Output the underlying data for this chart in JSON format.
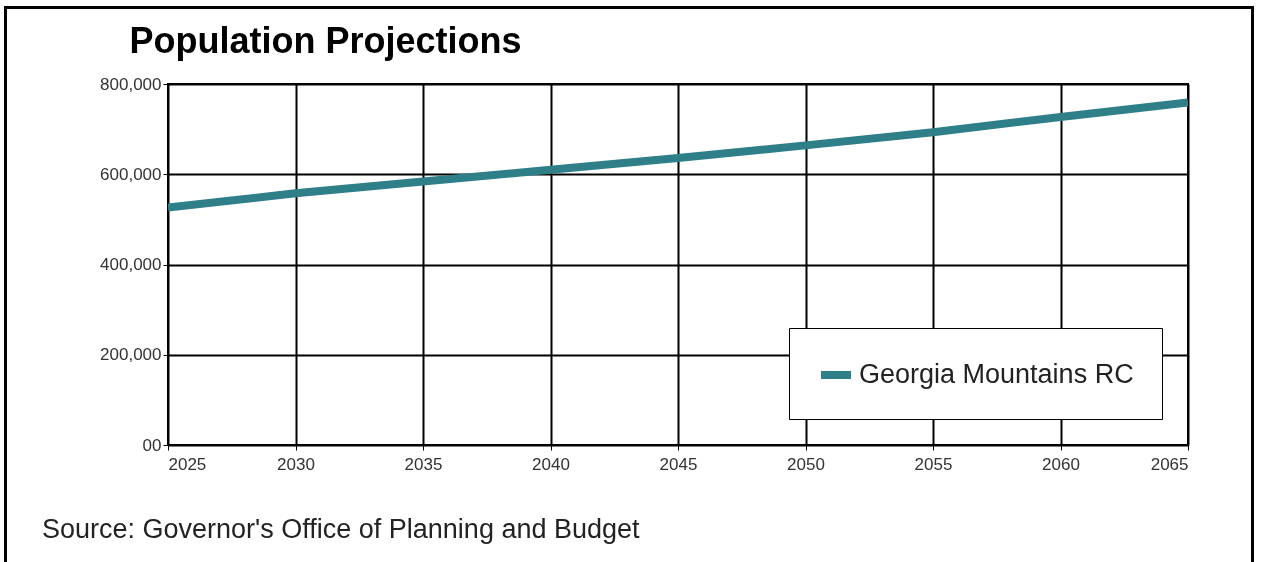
{
  "chart_data": {
    "type": "line",
    "title": "Population Projections",
    "x": [
      2025,
      2030,
      2035,
      2040,
      2045,
      2050,
      2055,
      2060,
      2065
    ],
    "series": [
      {
        "name": "Georgia Mountains RC",
        "color": "#2e7f88",
        "values": [
          526000,
          558000,
          584000,
          610000,
          636000,
          664000,
          693000,
          727000,
          759000
        ]
      }
    ],
    "xlim": [
      2025,
      2065
    ],
    "xticks": [
      2025,
      2030,
      2035,
      2040,
      2045,
      2050,
      2055,
      2060,
      2065
    ],
    "ylim": [
      0,
      800000
    ],
    "yticks": [
      {
        "value": 0,
        "label": "00"
      },
      {
        "value": 200000,
        "label": "200,000"
      },
      {
        "value": 400000,
        "label": "400,000"
      },
      {
        "value": 600000,
        "label": "600,000"
      },
      {
        "value": 800000,
        "label": "800,000"
      }
    ],
    "grid": true,
    "legend": "bottom right",
    "marker": "none",
    "line_style": "solid",
    "annotations": [
      "Source: Governor's Office of Planning and Budget"
    ]
  }
}
